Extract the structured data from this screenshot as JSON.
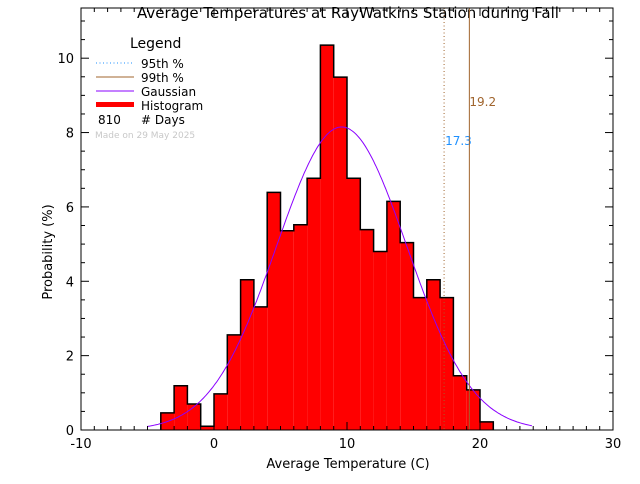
{
  "chart_data": {
    "type": "bar",
    "title": "Average Temperatures at RayWatkins Station during Fall",
    "xlabel": "Average Temperature (C)",
    "ylabel": "Probability  (%)",
    "xlim": [
      -10,
      30
    ],
    "ylim": [
      0,
      11.35
    ],
    "xticks": [
      -10,
      0,
      10,
      20,
      30
    ],
    "yticks": [
      0,
      2,
      4,
      6,
      8,
      10
    ],
    "bin_width": 1,
    "bin_starts": [
      -4,
      -3,
      -2,
      -1,
      0,
      1,
      2,
      3,
      4,
      5,
      6,
      7,
      8,
      9,
      10,
      11,
      12,
      13,
      14,
      15,
      16,
      17,
      18,
      19,
      20
    ],
    "values": [
      0.46,
      1.19,
      0.7,
      0.1,
      0.97,
      2.56,
      4.04,
      3.31,
      6.39,
      5.36,
      5.52,
      6.77,
      10.35,
      9.49,
      6.77,
      5.39,
      4.8,
      6.15,
      5.04,
      3.56,
      4.04,
      3.56,
      1.46,
      1.08,
      0.22
    ],
    "gaussian": {
      "mean": 9.6,
      "sigma": 4.9,
      "peak": 8.15,
      "range": [
        -5,
        24
      ]
    },
    "percentiles": [
      {
        "name": "95th %",
        "value": 17.3,
        "label": "17.3",
        "style": "dotted",
        "label_color": "#1e90ff"
      },
      {
        "name": "99th %",
        "value": 19.2,
        "label": "19.2",
        "style": "solid",
        "label_color": "#a0642d"
      }
    ],
    "legend": {
      "title": "Legend",
      "placement": "top-left",
      "entries": [
        "95th %",
        "99th %",
        "Gaussian",
        "Histogram"
      ],
      "days_count": "810",
      "days_label": "# Days"
    },
    "annotation": "Made on 29 May 2025",
    "colors": {
      "histogram": "#ff0000",
      "gaussian": "#8a00ff",
      "p95": "#a0642d",
      "p99": "#a0642d",
      "p95_legend": "#1e90ff"
    }
  }
}
